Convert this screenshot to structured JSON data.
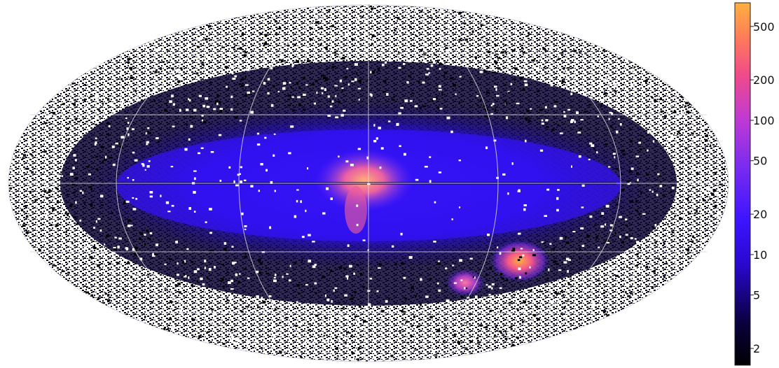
{
  "figure": {
    "projection": "aitoff-hammer-allsky",
    "graticule": true,
    "colormap": [
      "#000000",
      "#0a0040",
      "#2a08d0",
      "#3c14ff",
      "#7b2cf0",
      "#c03ad4",
      "#f04a8a",
      "#ff7a5a",
      "#ffb040"
    ],
    "background_outside_map": "#ffffff"
  },
  "colorbar": {
    "scale": "log",
    "ticks": [
      {
        "value": 2,
        "label": "2"
      },
      {
        "value": 5,
        "label": "5"
      },
      {
        "value": 10,
        "label": "10"
      },
      {
        "value": 20,
        "label": "20"
      },
      {
        "value": 50,
        "label": "50"
      },
      {
        "value": 100,
        "label": "100"
      },
      {
        "value": 200,
        "label": "200"
      },
      {
        "value": 500,
        "label": "500"
      }
    ],
    "range": [
      1.5,
      750
    ]
  }
}
